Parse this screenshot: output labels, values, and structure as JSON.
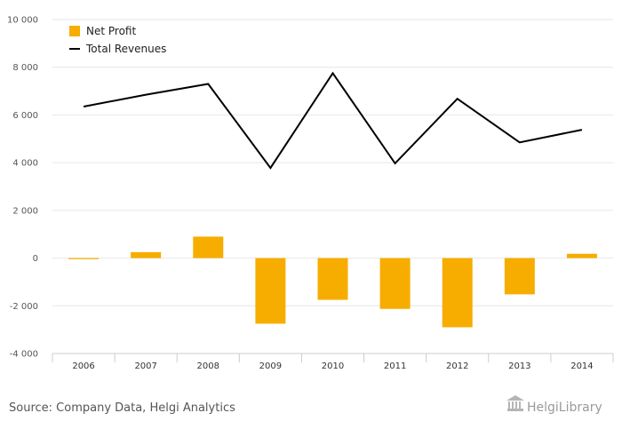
{
  "chart_data": {
    "type": "bar+line",
    "categories": [
      "2006",
      "2007",
      "2008",
      "2009",
      "2010",
      "2011",
      "2012",
      "2013",
      "2014"
    ],
    "series": [
      {
        "name": "Net Profit",
        "type": "bar",
        "color": "#f7ad00",
        "values": [
          -30,
          250,
          900,
          -2750,
          -1750,
          -2130,
          -2900,
          -1520,
          180
        ]
      },
      {
        "name": "Total Revenues",
        "type": "line",
        "color": "#000000",
        "values": [
          6350,
          6850,
          7300,
          3780,
          7750,
          3970,
          6680,
          4850,
          5380
        ]
      }
    ],
    "y_ticks": [
      "10 000",
      "8 000",
      "6 000",
      "4 000",
      "2 000",
      "0",
      "-2 000",
      "-4 000"
    ],
    "ylim": [
      -4000,
      10000
    ],
    "grid": true,
    "legend_position": "top-left"
  },
  "footer": {
    "source": "Source: Company Data, Helgi Analytics",
    "logo_text": "HelgiLibrary"
  },
  "colors": {
    "bar": "#f7ad00",
    "line": "#000000",
    "grid": "#e6e6e6",
    "axis": "#cccccc"
  }
}
